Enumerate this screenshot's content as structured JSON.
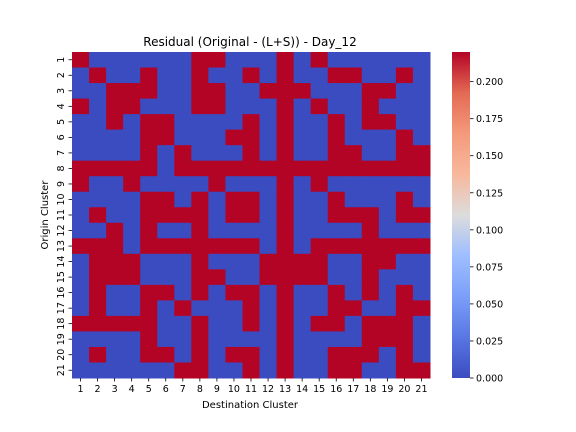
{
  "chart_data": {
    "type": "heatmap",
    "title": "Residual (Original - (L+S)) - Day_12",
    "xlabel": "Destination Cluster",
    "ylabel": "Origin Cluster",
    "x_categories": [
      "1",
      "2",
      "3",
      "4",
      "5",
      "6",
      "7",
      "8",
      "9",
      "10",
      "11",
      "12",
      "13",
      "14",
      "15",
      "16",
      "17",
      "18",
      "19",
      "20",
      "21"
    ],
    "y_categories": [
      "1",
      "2",
      "3",
      "4",
      "5",
      "6",
      "7",
      "8",
      "9",
      "10",
      "11",
      "12",
      "13",
      "14",
      "15",
      "16",
      "17",
      "18",
      "19",
      "20",
      "21"
    ],
    "colorbar": {
      "min": 0.0,
      "max": 0.22,
      "ticks": [
        0.0,
        0.025,
        0.05,
        0.075,
        0.1,
        0.125,
        0.15,
        0.175,
        0.2
      ],
      "tick_labels": [
        "0.000",
        "0.025",
        "0.050",
        "0.075",
        "0.100",
        "0.125",
        "0.150",
        "0.175",
        "0.200"
      ],
      "colormap": "coolwarm",
      "low_color": "#3b4cc0",
      "mid_color": "#dddcdc",
      "high_color": "#b40426"
    },
    "grid": false,
    "values": [
      [
        0.22,
        0,
        0,
        0,
        0,
        0,
        0,
        0.22,
        0.22,
        0,
        0,
        0,
        0.22,
        0,
        0.22,
        0,
        0,
        0,
        0,
        0,
        0
      ],
      [
        0,
        0.22,
        0,
        0,
        0.22,
        0,
        0,
        0.22,
        0,
        0,
        0.22,
        0,
        0.22,
        0,
        0,
        0.22,
        0.22,
        0,
        0,
        0.22,
        0
      ],
      [
        0,
        0,
        0.22,
        0.22,
        0.22,
        0,
        0,
        0.22,
        0.22,
        0,
        0,
        0.22,
        0.22,
        0.22,
        0,
        0,
        0,
        0.22,
        0.22,
        0,
        0
      ],
      [
        0.22,
        0,
        0.22,
        0.22,
        0,
        0,
        0,
        0.22,
        0.22,
        0,
        0,
        0,
        0.22,
        0,
        0.22,
        0,
        0,
        0.22,
        0,
        0,
        0
      ],
      [
        0,
        0,
        0.22,
        0,
        0.22,
        0.22,
        0,
        0,
        0,
        0,
        0.22,
        0,
        0.22,
        0,
        0,
        0.22,
        0,
        0.22,
        0.22,
        0,
        0
      ],
      [
        0,
        0,
        0,
        0,
        0.22,
        0.22,
        0,
        0,
        0,
        0.22,
        0.22,
        0,
        0.22,
        0,
        0,
        0.22,
        0,
        0,
        0,
        0.22,
        0
      ],
      [
        0,
        0,
        0,
        0,
        0.22,
        0,
        0.22,
        0,
        0,
        0,
        0.22,
        0,
        0.22,
        0,
        0,
        0.22,
        0.22,
        0,
        0,
        0.22,
        0.22
      ],
      [
        0.22,
        0.22,
        0.22,
        0.22,
        0.22,
        0,
        0.22,
        0.22,
        0.22,
        0.22,
        0.22,
        0.22,
        0.22,
        0.22,
        0.22,
        0.22,
        0.22,
        0.22,
        0.22,
        0.22,
        0.22
      ],
      [
        0.22,
        0,
        0,
        0.22,
        0,
        0,
        0,
        0,
        0.22,
        0,
        0,
        0,
        0.22,
        0,
        0.22,
        0,
        0,
        0,
        0,
        0,
        0
      ],
      [
        0,
        0,
        0,
        0,
        0.22,
        0.22,
        0,
        0.22,
        0,
        0.22,
        0.22,
        0,
        0.22,
        0,
        0,
        0.22,
        0,
        0,
        0,
        0.22,
        0
      ],
      [
        0,
        0.22,
        0,
        0,
        0.22,
        0.22,
        0.22,
        0.22,
        0,
        0.22,
        0.22,
        0,
        0.22,
        0,
        0,
        0.22,
        0.22,
        0.22,
        0,
        0.22,
        0.22
      ],
      [
        0,
        0,
        0.22,
        0,
        0.22,
        0,
        0,
        0.22,
        0,
        0,
        0,
        0,
        0.22,
        0,
        0,
        0,
        0,
        0.22,
        0,
        0,
        0
      ],
      [
        0.22,
        0.22,
        0.22,
        0,
        0.22,
        0.22,
        0.22,
        0.22,
        0.22,
        0.22,
        0.22,
        0,
        0.22,
        0,
        0.22,
        0.22,
        0.22,
        0.22,
        0.22,
        0.22,
        0.22
      ],
      [
        0,
        0.22,
        0.22,
        0.22,
        0,
        0,
        0,
        0.22,
        0,
        0,
        0,
        0.22,
        0.22,
        0.22,
        0.22,
        0,
        0,
        0.22,
        0.22,
        0,
        0
      ],
      [
        0,
        0.22,
        0.22,
        0.22,
        0,
        0,
        0,
        0.22,
        0.22,
        0,
        0,
        0.22,
        0.22,
        0.22,
        0.22,
        0,
        0,
        0.22,
        0,
        0,
        0
      ],
      [
        0,
        0.22,
        0,
        0,
        0.22,
        0.22,
        0,
        0.22,
        0,
        0.22,
        0.22,
        0,
        0.22,
        0,
        0,
        0.22,
        0,
        0.22,
        0,
        0.22,
        0
      ],
      [
        0,
        0.22,
        0,
        0,
        0.22,
        0,
        0.22,
        0,
        0,
        0,
        0.22,
        0,
        0.22,
        0,
        0,
        0.22,
        0.22,
        0,
        0,
        0.22,
        0.22
      ],
      [
        0.22,
        0.22,
        0.22,
        0.22,
        0.22,
        0,
        0,
        0.22,
        0,
        0,
        0.22,
        0,
        0.22,
        0,
        0.22,
        0.22,
        0,
        0.22,
        0.22,
        0.22,
        0
      ],
      [
        0,
        0,
        0,
        0,
        0.22,
        0,
        0,
        0.22,
        0,
        0,
        0,
        0,
        0.22,
        0,
        0,
        0,
        0,
        0.22,
        0.22,
        0.22,
        0
      ],
      [
        0,
        0.22,
        0,
        0,
        0.22,
        0.22,
        0,
        0.22,
        0,
        0.22,
        0.22,
        0,
        0.22,
        0,
        0,
        0.22,
        0.22,
        0.22,
        0,
        0.22,
        0
      ],
      [
        0,
        0,
        0,
        0,
        0,
        0,
        0.22,
        0.22,
        0,
        0,
        0.22,
        0,
        0.22,
        0,
        0,
        0.22,
        0.22,
        0,
        0,
        0.22,
        0.22
      ]
    ]
  }
}
